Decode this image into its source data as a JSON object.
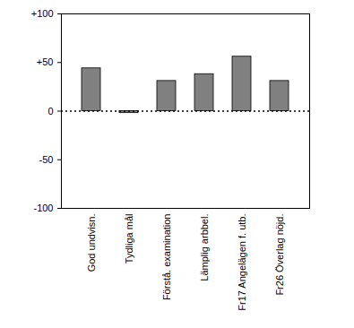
{
  "chart_data": {
    "type": "bar",
    "categories": [
      "God undvisn.",
      "Tydliga mål",
      "Förstå. examination",
      "Lämplig arbbel.",
      "Fr17 Angelägen f. utb.",
      "Fr26 Överlag nöjd."
    ],
    "values": [
      44,
      -2,
      31,
      38,
      56,
      31
    ],
    "color": "#808080",
    "ylim": [
      -100,
      100
    ],
    "yticks": [
      {
        "value": 100,
        "label": "+100"
      },
      {
        "value": 50,
        "label": "+50"
      },
      0,
      -50,
      -100
    ],
    "grid": false
  }
}
